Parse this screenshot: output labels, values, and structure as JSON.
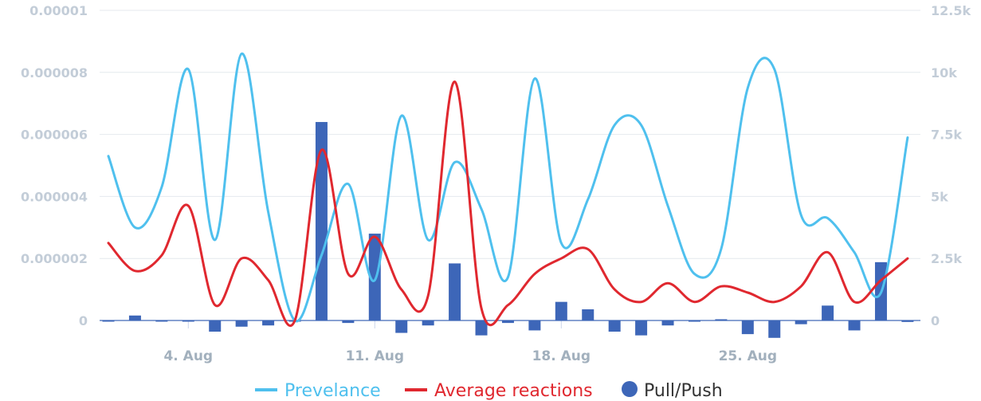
{
  "chart_data": {
    "type": "line",
    "x_type": "datetime",
    "x_range": [
      "2018-08-01",
      "2018-08-31"
    ],
    "x_ticks": [
      "4. Aug",
      "11. Aug",
      "18. Aug",
      "25. Aug"
    ],
    "y_left": {
      "range": [
        0,
        1e-05
      ],
      "ticks": [
        "0",
        "0.000002",
        "0.000004",
        "0.000006",
        "0.000008",
        "0.00001"
      ]
    },
    "y_right": {
      "range": [
        0,
        12500
      ],
      "ticks": [
        "0",
        "2.5k",
        "5k",
        "7.5k",
        "10k",
        "12.5k"
      ]
    },
    "grid": true,
    "legend_position": "bottom-center",
    "series": [
      {
        "name": "Prevelance",
        "type": "spline",
        "axis": "left",
        "color": "#4fc0ee",
        "x": [
          "2018-08-01",
          "2018-08-02",
          "2018-08-03",
          "2018-08-04",
          "2018-08-05",
          "2018-08-06",
          "2018-08-07",
          "2018-08-08",
          "2018-08-09",
          "2018-08-10",
          "2018-08-11",
          "2018-08-12",
          "2018-08-13",
          "2018-08-14",
          "2018-08-15",
          "2018-08-16",
          "2018-08-17",
          "2018-08-18",
          "2018-08-19",
          "2018-08-20",
          "2018-08-21",
          "2018-08-22",
          "2018-08-23",
          "2018-08-24",
          "2018-08-25",
          "2018-08-26",
          "2018-08-27",
          "2018-08-28",
          "2018-08-29",
          "2018-08-30",
          "2018-08-31"
        ],
        "values": [
          5.3e-06,
          3e-06,
          4.3e-06,
          8.1e-06,
          2.6e-06,
          8.6e-06,
          3.5e-06,
          0.0,
          2.1e-06,
          4.4e-06,
          1.3e-06,
          6.6e-06,
          2.6e-06,
          5.1e-06,
          3.6e-06,
          1.4e-06,
          7.8e-06,
          2.5e-06,
          3.9e-06,
          6.3e-06,
          6.3e-06,
          3.7e-06,
          1.5e-06,
          2.3e-06,
          7.5e-06,
          8.1e-06,
          3.4e-06,
          3.3e-06,
          2.2e-06,
          9e-07,
          5.9e-06
        ]
      },
      {
        "name": "Average reactions",
        "type": "spline",
        "axis": "left",
        "color": "#e0282f",
        "x": [
          "2018-08-01",
          "2018-08-02",
          "2018-08-03",
          "2018-08-04",
          "2018-08-05",
          "2018-08-06",
          "2018-08-07",
          "2018-08-08",
          "2018-08-09",
          "2018-08-10",
          "2018-08-11",
          "2018-08-12",
          "2018-08-13",
          "2018-08-14",
          "2018-08-15",
          "2018-08-16",
          "2018-08-17",
          "2018-08-18",
          "2018-08-19",
          "2018-08-20",
          "2018-08-21",
          "2018-08-22",
          "2018-08-23",
          "2018-08-24",
          "2018-08-25",
          "2018-08-26",
          "2018-08-27",
          "2018-08-28",
          "2018-08-29",
          "2018-08-30",
          "2018-08-31"
        ],
        "values": [
          2.5e-06,
          1.6e-06,
          2.1e-06,
          3.7e-06,
          5e-07,
          2e-06,
          1.3e-06,
          0.0,
          5.5e-06,
          1.5e-06,
          2.7e-06,
          1e-06,
          8e-07,
          7.7e-06,
          4e-07,
          5e-07,
          1.5e-06,
          2e-06,
          2.3e-06,
          1e-06,
          6e-07,
          1.2e-06,
          6e-07,
          1.1e-06,
          9e-07,
          6e-07,
          1.1e-06,
          2.2e-06,
          6e-07,
          1.3e-06,
          2e-06
        ]
      },
      {
        "name": "Pull/Push",
        "type": "column",
        "axis": "right",
        "color": "#3d66b8",
        "x": [
          "2018-08-01",
          "2018-08-02",
          "2018-08-03",
          "2018-08-04",
          "2018-08-05",
          "2018-08-06",
          "2018-08-07",
          "2018-08-08",
          "2018-08-09",
          "2018-08-10",
          "2018-08-11",
          "2018-08-12",
          "2018-08-13",
          "2018-08-14",
          "2018-08-15",
          "2018-08-16",
          "2018-08-17",
          "2018-08-18",
          "2018-08-19",
          "2018-08-20",
          "2018-08-21",
          "2018-08-22",
          "2018-08-23",
          "2018-08-24",
          "2018-08-25",
          "2018-08-26",
          "2018-08-27",
          "2018-08-28",
          "2018-08-29",
          "2018-08-30",
          "2018-08-31"
        ],
        "values": [
          0,
          200,
          0,
          0,
          -450,
          -250,
          -200,
          0,
          8000,
          -100,
          3500,
          -500,
          -200,
          2300,
          -600,
          -100,
          -400,
          750,
          450,
          -450,
          -600,
          -200,
          -50,
          50,
          -550,
          -700,
          -150,
          600,
          -400,
          2350,
          -60
        ]
      }
    ]
  },
  "legend": [
    {
      "label": "Prevelance",
      "color": "#4fc0ee",
      "marker": "line"
    },
    {
      "label": "Average reactions",
      "color": "#e0282f",
      "marker": "line"
    },
    {
      "label": "Pull/Push",
      "color": "#3d66b8",
      "marker": "circle"
    }
  ]
}
